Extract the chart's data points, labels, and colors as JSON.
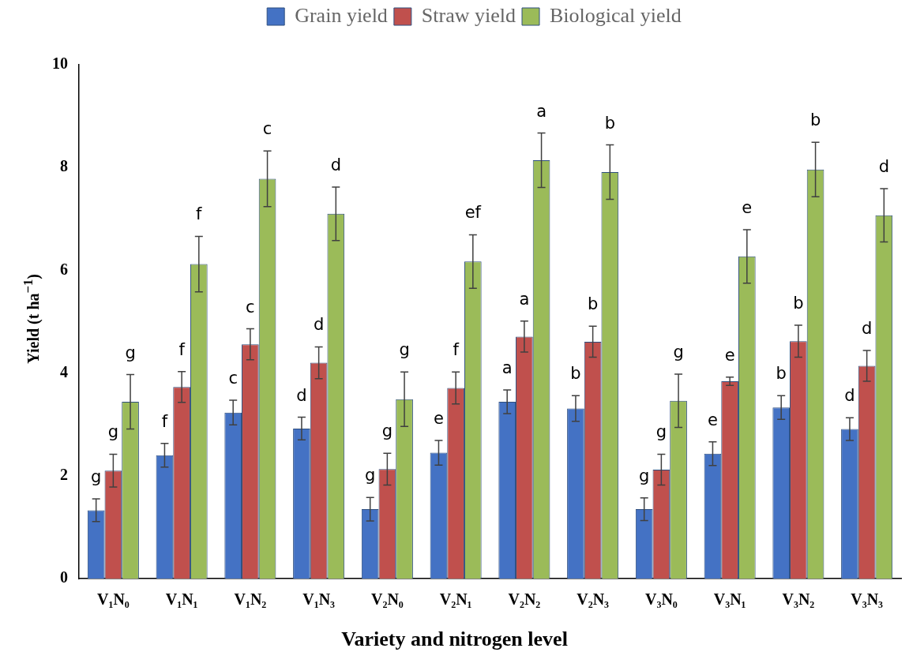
{
  "chart_data": {
    "type": "bar",
    "xlabel": "Variety and nitrogen level",
    "ylabel": "Yield (t ha$^{−1}$)",
    "categories": [
      "V₁N₀",
      "V₁N₁",
      "V₁N₂",
      "V₁N₃",
      "V₂N₀",
      "V₂N₁",
      "V₂N₂",
      "V₂N₃",
      "V₃N₀",
      "V₃N₁",
      "V₃N₂",
      "V₃N₃"
    ],
    "series": [
      {
        "name": "Grain yield",
        "color": "#4472c4",
        "values": [
          1.33,
          2.4,
          3.23,
          2.92,
          1.35,
          2.45,
          3.44,
          3.31,
          1.35,
          2.43,
          3.33,
          2.91
        ],
        "errors": [
          0.22,
          0.23,
          0.24,
          0.22,
          0.23,
          0.24,
          0.23,
          0.25,
          0.22,
          0.23,
          0.23,
          0.22
        ]
      },
      {
        "name": "Straw yield",
        "color": "#c0504d",
        "values": [
          2.1,
          3.73,
          4.56,
          4.2,
          2.13,
          3.71,
          4.71,
          4.61,
          2.12,
          3.84,
          4.62,
          4.14
        ],
        "errors": [
          0.32,
          0.3,
          0.3,
          0.31,
          0.31,
          0.31,
          0.3,
          0.3,
          0.3,
          0.08,
          0.31,
          0.3
        ]
      },
      {
        "name": "Biological yield",
        "color": "#9bbb59",
        "values": [
          3.44,
          6.12,
          7.78,
          7.1,
          3.49,
          6.17,
          8.14,
          7.91,
          3.46,
          6.27,
          7.96,
          7.07
        ],
        "errors": [
          0.53,
          0.54,
          0.54,
          0.52,
          0.53,
          0.52,
          0.53,
          0.53,
          0.52,
          0.52,
          0.53,
          0.52
        ]
      }
    ],
    "ylim": [
      0,
      10
    ],
    "yticks": [
      0,
      2,
      4,
      6,
      8,
      10
    ],
    "grid": false,
    "legend": "top",
    "annotations": [
      "g",
      "g",
      "g",
      "f",
      "f",
      "f",
      "c",
      "c",
      "c",
      "d",
      "d",
      "d",
      "g",
      "g",
      "g",
      "e",
      "f",
      "ef",
      "a",
      "a",
      "a",
      "b",
      "b",
      "b",
      "g",
      "g",
      "g",
      "e",
      "e",
      "e",
      "b",
      "b",
      "b",
      "d",
      "d",
      "d"
    ]
  }
}
